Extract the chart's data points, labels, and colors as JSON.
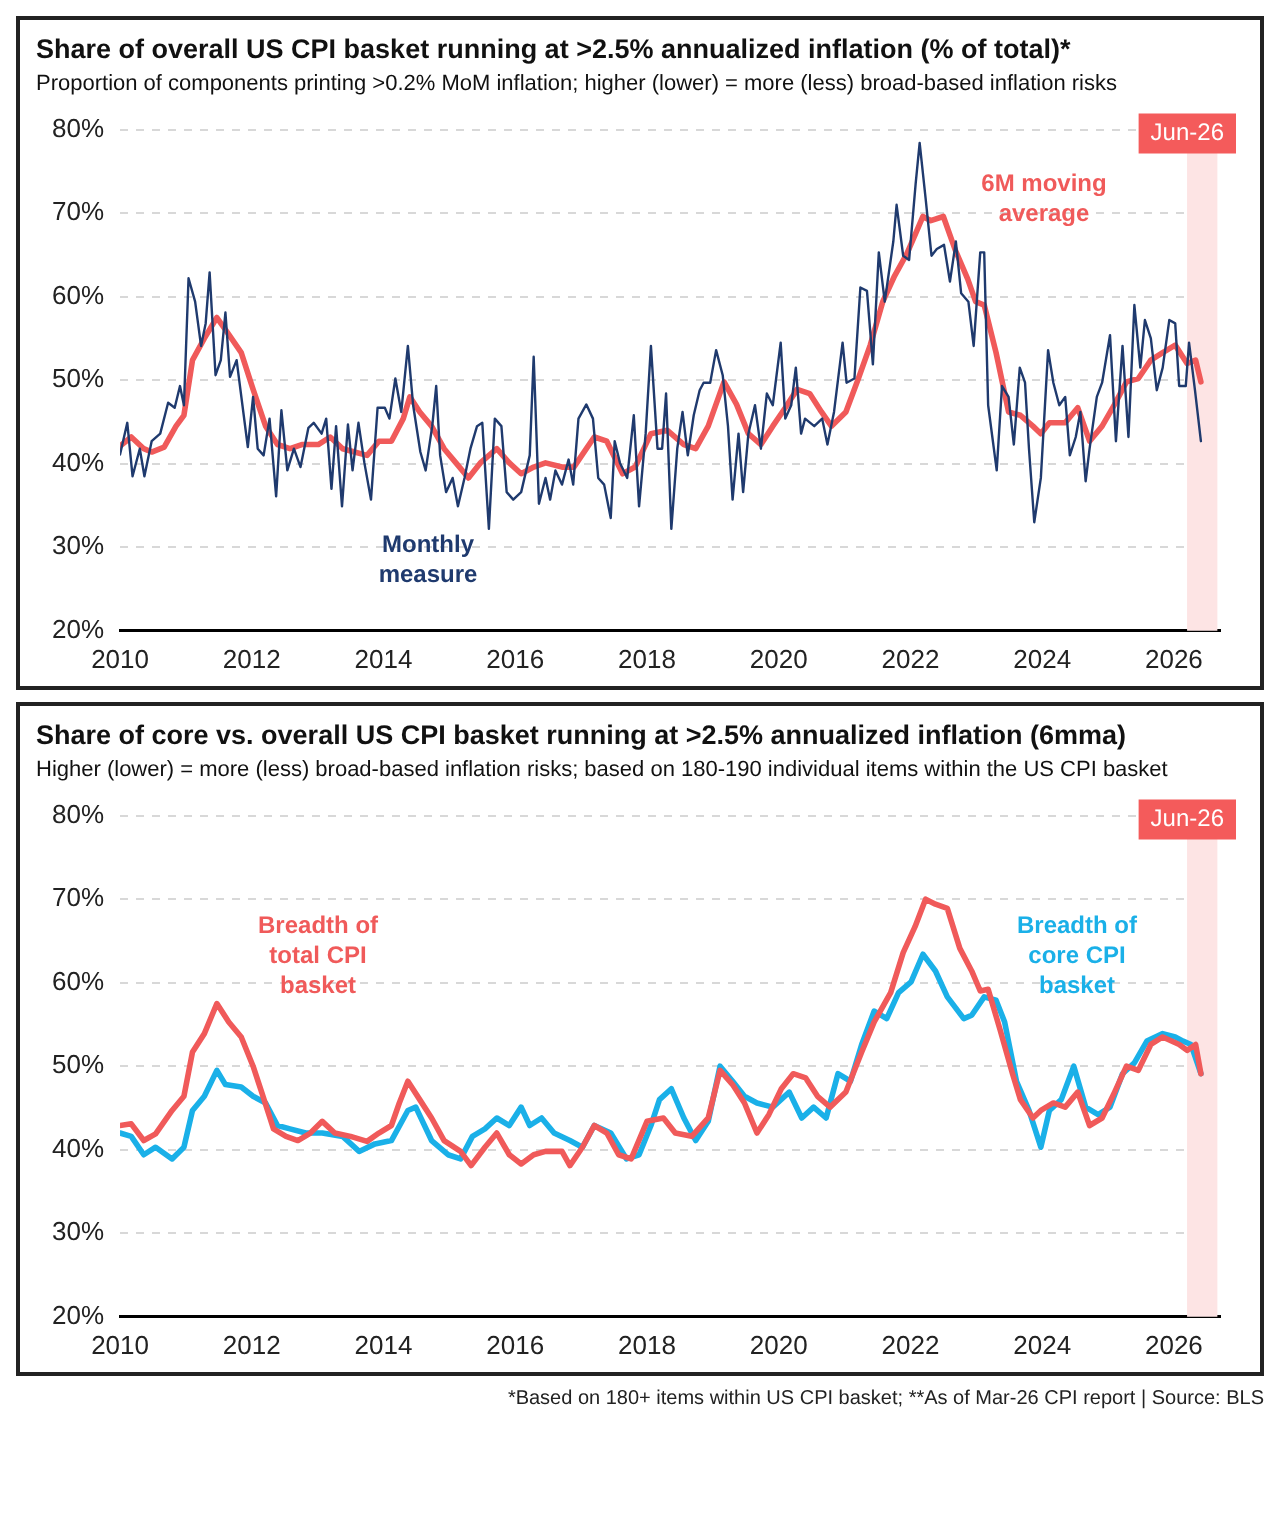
{
  "chart_data": [
    {
      "type": "line",
      "title": "Share of overall US CPI basket running at >2.5% annualized inflation (% of total)*",
      "subtitle": "Proportion of components printing >0.2% MoM inflation; higher (lower) = more (less) broad-based inflation risks",
      "xlim": [
        2010,
        2026.7
      ],
      "xticks": [
        2010,
        2012,
        2014,
        2016,
        2018,
        2020,
        2022,
        2024,
        2026
      ],
      "ylim": [
        20,
        80
      ],
      "yticks": [
        {
          "value": 20,
          "label": "20%"
        },
        {
          "value": 30,
          "label": "30%"
        },
        {
          "value": 40,
          "label": "40%"
        },
        {
          "value": 50,
          "label": "50%"
        },
        {
          "value": 60,
          "label": "60%"
        },
        {
          "value": 70,
          "label": "70%"
        },
        {
          "value": 80,
          "label": "80%"
        }
      ],
      "grid": "y",
      "legend": false,
      "bands": [
        {
          "axis": "x",
          "from": 2026.2,
          "to": 2026.66,
          "label": "Jun-26",
          "color": "#fde4e4"
        }
      ],
      "series": [
        {
          "name": "Monthly measure",
          "color": "#1f3a6e",
          "x": [
            2010.0,
            2010.11,
            2010.19,
            2010.3,
            2010.37,
            2010.48,
            2010.61,
            2010.73,
            2010.83,
            2010.91,
            2010.97,
            2011.04,
            2011.14,
            2011.23,
            2011.3,
            2011.36,
            2011.45,
            2011.53,
            2011.6,
            2011.67,
            2011.77,
            2011.94,
            2012.02,
            2012.09,
            2012.18,
            2012.27,
            2012.37,
            2012.45,
            2012.54,
            2012.64,
            2012.74,
            2012.86,
            2012.94,
            2013.06,
            2013.13,
            2013.21,
            2013.28,
            2013.37,
            2013.46,
            2013.53,
            2013.62,
            2013.71,
            2013.81,
            2013.91,
            2014.02,
            2014.09,
            2014.18,
            2014.27,
            2014.37,
            2014.45,
            2014.56,
            2014.64,
            2014.74,
            2014.8,
            2014.86,
            2014.95,
            2015.05,
            2015.13,
            2015.23,
            2015.32,
            2015.42,
            2015.5,
            2015.6,
            2015.69,
            2015.79,
            2015.87,
            2015.97,
            2016.09,
            2016.22,
            2016.28,
            2016.36,
            2016.46,
            2016.53,
            2016.61,
            2016.71,
            2016.81,
            2016.88,
            2016.96,
            2017.08,
            2017.18,
            2017.26,
            2017.35,
            2017.45,
            2017.51,
            2017.59,
            2017.7,
            2017.8,
            2017.88,
            2017.98,
            2018.06,
            2018.16,
            2018.23,
            2018.29,
            2018.37,
            2018.46,
            2018.54,
            2018.62,
            2018.71,
            2018.8,
            2018.86,
            2018.96,
            2019.05,
            2019.15,
            2019.23,
            2019.3,
            2019.39,
            2019.46,
            2019.54,
            2019.64,
            2019.73,
            2019.82,
            2019.91,
            2020.03,
            2020.1,
            2020.19,
            2020.26,
            2020.34,
            2020.4,
            2020.54,
            2020.66,
            2020.74,
            2020.84,
            2020.97,
            2021.03,
            2021.15,
            2021.24,
            2021.34,
            2021.43,
            2021.52,
            2021.61,
            2021.74,
            2021.79,
            2021.89,
            2021.98,
            2022.08,
            2022.14,
            2022.23,
            2022.32,
            2022.4,
            2022.51,
            2022.6,
            2022.69,
            2022.77,
            2022.88,
            2022.96,
            2023.06,
            2023.12,
            2023.18,
            2023.31,
            2023.39,
            2023.49,
            2023.57,
            2023.66,
            2023.74,
            2023.8,
            2023.88,
            2023.98,
            2024.09,
            2024.17,
            2024.26,
            2024.35,
            2024.42,
            2024.51,
            2024.58,
            2024.66,
            2024.72,
            2024.83,
            2024.91,
            2025.03,
            2025.12,
            2025.22,
            2025.31,
            2025.4,
            2025.49,
            2025.56,
            2025.65,
            2025.74,
            2025.83,
            2025.93,
            2026.02,
            2026.08,
            2026.18,
            2026.23,
            2026.32,
            2026.41
          ],
          "values": [
            41.1,
            44.9,
            38.5,
            41.8,
            38.5,
            42.7,
            43.6,
            47.3,
            46.7,
            49.3,
            47,
            62.2,
            59.4,
            54.1,
            56.8,
            62.9,
            50.6,
            52.4,
            58.1,
            50.4,
            52.4,
            42,
            48,
            41.8,
            41,
            45.4,
            36.1,
            46.4,
            39.2,
            41.8,
            39.6,
            44.3,
            44.9,
            43.6,
            45.4,
            37,
            44.5,
            34.9,
            44.7,
            39.2,
            44.9,
            40.1,
            35.7,
            46.7,
            46.7,
            45.4,
            50.2,
            46.2,
            54.1,
            47,
            41.4,
            39.2,
            44.5,
            49.3,
            41,
            36.6,
            38.3,
            34.9,
            38.3,
            41.8,
            44.5,
            44.9,
            32.2,
            45.4,
            44.5,
            36.6,
            35.7,
            36.6,
            41,
            52.8,
            35.2,
            38.3,
            35.7,
            39.2,
            37.5,
            40.5,
            37.5,
            45.4,
            47.1,
            45.4,
            38.3,
            37.5,
            33.5,
            42.7,
            40.1,
            38.3,
            45.8,
            34.9,
            43.6,
            54.1,
            41.8,
            41.8,
            48.4,
            32.2,
            41.8,
            46.2,
            41,
            45.8,
            48.8,
            49.7,
            49.7,
            53.6,
            50.6,
            44.5,
            35.7,
            43.6,
            36.6,
            43.6,
            47,
            41.8,
            48.4,
            47,
            54.5,
            45.4,
            47,
            51.5,
            43.6,
            45.4,
            44.5,
            45.4,
            42.3,
            46.2,
            54.5,
            49.7,
            50.2,
            61.1,
            60.7,
            51.9,
            65.3,
            59.4,
            66.6,
            71,
            64.9,
            64.4,
            73.6,
            78.4,
            71.8,
            64.9,
            65.7,
            66.2,
            61.8,
            66.6,
            60.4,
            59.4,
            54.1,
            65.3,
            65.3,
            47,
            39.2,
            49.3,
            48,
            42.3,
            51.5,
            49.7,
            41.8,
            33,
            38.3,
            53.6,
            49.7,
            47,
            48,
            41,
            43.2,
            46.2,
            37.9,
            41.8,
            48,
            49.7,
            55.4,
            42.7,
            54.1,
            43.2,
            59,
            51.5,
            57.2,
            55,
            48.8,
            51.5,
            57.2,
            56.8,
            49.3,
            49.3,
            54.5,
            48.8,
            42.7
          ]
        },
        {
          "name": "6M moving average",
          "color": "#f05a5a",
          "x": [
            2010.0,
            2010.17,
            2010.36,
            2010.48,
            2010.67,
            2010.85,
            2010.97,
            2011.1,
            2011.28,
            2011.47,
            2011.65,
            2011.84,
            2012.02,
            2012.21,
            2012.39,
            2012.58,
            2012.76,
            2013.01,
            2013.19,
            2013.38,
            2013.56,
            2013.75,
            2013.93,
            2014.12,
            2014.3,
            2014.4,
            2014.55,
            2014.73,
            2014.92,
            2015.1,
            2015.29,
            2015.47,
            2015.72,
            2015.91,
            2016.09,
            2016.28,
            2016.46,
            2016.71,
            2016.89,
            2017.08,
            2017.2,
            2017.39,
            2017.63,
            2017.82,
            2018.06,
            2018.31,
            2018.56,
            2018.74,
            2018.93,
            2019.17,
            2019.36,
            2019.54,
            2019.73,
            2019.91,
            2020.1,
            2020.28,
            2020.47,
            2020.65,
            2020.8,
            2021.02,
            2021.21,
            2021.39,
            2021.58,
            2021.76,
            2021.95,
            2022.07,
            2022.19,
            2022.31,
            2022.5,
            2022.68,
            2022.87,
            2022.99,
            2023.12,
            2023.3,
            2023.49,
            2023.67,
            2023.86,
            2023.98,
            2024.11,
            2024.35,
            2024.54,
            2024.72,
            2024.91,
            2025.1,
            2025.28,
            2025.46,
            2025.65,
            2025.83,
            2026.02,
            2026.2,
            2026.33,
            2026.41
          ],
          "values": [
            42.1,
            43.2,
            41.8,
            41.4,
            42,
            44.5,
            45.8,
            52.4,
            55,
            57.5,
            55.5,
            53.3,
            48.9,
            44.5,
            42.3,
            41.8,
            42.3,
            42.3,
            43.2,
            41.8,
            41.4,
            41,
            42.7,
            42.7,
            45.4,
            48,
            46.2,
            44.5,
            41.8,
            40.1,
            38.3,
            40.1,
            41.8,
            40.1,
            38.8,
            39.6,
            40.1,
            39.6,
            39.6,
            41.8,
            43.2,
            42.7,
            38.8,
            39.6,
            43.6,
            44,
            42.3,
            41.8,
            44.5,
            49.8,
            47.1,
            43.6,
            42.3,
            44.5,
            46.7,
            48.9,
            48.4,
            46.2,
            44.5,
            46.2,
            50.2,
            54.2,
            59.4,
            62.5,
            65.2,
            67.4,
            69.6,
            69.1,
            69.6,
            65.6,
            62.1,
            59.4,
            59,
            53.3,
            46.2,
            45.8,
            44.5,
            43.6,
            44.9,
            44.9,
            46.7,
            42.7,
            44.5,
            47.1,
            49.8,
            50.2,
            52.4,
            53.3,
            54.2,
            52,
            52.4,
            49.8
          ]
        }
      ]
    },
    {
      "type": "line",
      "title": "Share of core vs. overall US CPI basket running at >2.5% annualized inflation (6mma)",
      "subtitle": "Higher (lower) = more (less) broad-based inflation risks; based on 180-190 individual items within the US CPI basket",
      "annotations": [
        "*Based on 180+ items within US CPI basket; **As of Mar-26 CPI report | Source: BLS"
      ],
      "xlim": [
        2010,
        2026.7
      ],
      "xticks": [
        2010,
        2012,
        2014,
        2016,
        2018,
        2020,
        2022,
        2024,
        2026
      ],
      "ylim": [
        20,
        80
      ],
      "yticks": [
        {
          "value": 20,
          "label": "20%"
        },
        {
          "value": 30,
          "label": "30%"
        },
        {
          "value": 40,
          "label": "40%"
        },
        {
          "value": 50,
          "label": "50%"
        },
        {
          "value": 60,
          "label": "60%"
        },
        {
          "value": 70,
          "label": "70%"
        },
        {
          "value": 80,
          "label": "80%"
        }
      ],
      "grid": "y",
      "legend": false,
      "bands": [
        {
          "axis": "x",
          "from": 2026.2,
          "to": 2026.66,
          "label": "Jun-26",
          "color": "#fde4e4"
        }
      ],
      "series": [
        {
          "name": "Breadth of total CPI basket",
          "color": "#f05a5a",
          "x": [
            2010.0,
            2010.17,
            2010.36,
            2010.54,
            2010.79,
            2010.97,
            2011.1,
            2011.28,
            2011.47,
            2011.65,
            2011.84,
            2012.02,
            2012.15,
            2012.33,
            2012.52,
            2012.7,
            2012.89,
            2013.07,
            2013.26,
            2013.5,
            2013.75,
            2013.93,
            2014.12,
            2014.24,
            2014.37,
            2014.55,
            2014.73,
            2014.92,
            2015.17,
            2015.33,
            2015.54,
            2015.72,
            2015.91,
            2016.09,
            2016.28,
            2016.46,
            2016.71,
            2016.83,
            2017.02,
            2017.2,
            2017.39,
            2017.57,
            2017.76,
            2018.0,
            2018.25,
            2018.43,
            2018.68,
            2018.93,
            2019.11,
            2019.3,
            2019.48,
            2019.67,
            2019.85,
            2020.04,
            2020.22,
            2020.41,
            2020.59,
            2020.78,
            2021.02,
            2021.26,
            2021.45,
            2021.7,
            2021.89,
            2022.07,
            2022.23,
            2022.38,
            2022.56,
            2022.75,
            2022.93,
            2023.06,
            2023.18,
            2023.36,
            2023.55,
            2023.67,
            2023.86,
            2023.98,
            2024.17,
            2024.35,
            2024.54,
            2024.72,
            2024.91,
            2025.1,
            2025.28,
            2025.46,
            2025.65,
            2025.83,
            2026.08,
            2026.2,
            2026.33,
            2026.41
          ],
          "values": [
            42.9,
            43.1,
            41.1,
            41.9,
            44.7,
            46.4,
            51.7,
            53.9,
            57.5,
            55.3,
            53.5,
            50,
            46.9,
            42.5,
            41.6,
            41.1,
            42,
            43.4,
            42,
            41.6,
            41,
            42,
            42.9,
            45.6,
            48.2,
            46,
            43.8,
            41.1,
            39.8,
            38.1,
            40.3,
            42,
            39.4,
            38.3,
            39.4,
            39.8,
            39.8,
            38.1,
            40.3,
            42.9,
            42,
            39.4,
            38.9,
            43.4,
            43.8,
            42,
            41.6,
            43.8,
            49.5,
            47.8,
            45.6,
            42,
            44.2,
            47.3,
            49.1,
            48.6,
            46.4,
            45.1,
            46.9,
            51.7,
            55.3,
            58.8,
            63.6,
            66.7,
            70,
            69.4,
            68.9,
            64.1,
            61.4,
            59,
            59.2,
            54.4,
            49.1,
            46,
            43.8,
            44.7,
            45.6,
            45.1,
            46.9,
            42.9,
            43.8,
            46.9,
            50,
            49.5,
            52.6,
            53.5,
            52.6,
            51.9,
            52.6,
            49.1
          ]
        },
        {
          "name": "Breadth of core CPI basket",
          "color": "#1ab0e8",
          "x": [
            2010.0,
            2010.17,
            2010.36,
            2010.54,
            2010.79,
            2010.97,
            2011.1,
            2011.28,
            2011.47,
            2011.6,
            2011.84,
            2012.02,
            2012.21,
            2012.39,
            2012.58,
            2012.82,
            2013.07,
            2013.38,
            2013.63,
            2013.87,
            2014.12,
            2014.37,
            2014.49,
            2014.73,
            2014.98,
            2015.17,
            2015.35,
            2015.54,
            2015.72,
            2015.91,
            2016.09,
            2016.22,
            2016.4,
            2016.59,
            2016.83,
            2017.02,
            2017.2,
            2017.45,
            2017.69,
            2017.88,
            2018.06,
            2018.19,
            2018.37,
            2018.56,
            2018.74,
            2018.93,
            2019.11,
            2019.3,
            2019.48,
            2019.67,
            2019.91,
            2020.16,
            2020.35,
            2020.53,
            2020.72,
            2020.9,
            2021.09,
            2021.26,
            2021.45,
            2021.64,
            2021.82,
            2022.01,
            2022.19,
            2022.38,
            2022.56,
            2022.81,
            2022.93,
            2023.12,
            2023.3,
            2023.43,
            2023.61,
            2023.8,
            2023.98,
            2024.11,
            2024.29,
            2024.48,
            2024.66,
            2024.85,
            2025.03,
            2025.22,
            2025.4,
            2025.59,
            2025.83,
            2026.02,
            2026.14,
            2026.26,
            2026.41
          ],
          "values": [
            42,
            41.6,
            39.4,
            40.3,
            38.9,
            40.3,
            44.7,
            46.4,
            49.5,
            47.8,
            47.5,
            46.4,
            45.6,
            42.9,
            42.5,
            42,
            42,
            41.6,
            39.8,
            40.7,
            41.1,
            44.7,
            45.1,
            41.1,
            39.4,
            38.9,
            41.6,
            42.5,
            43.8,
            42.9,
            45.1,
            42.9,
            43.8,
            42,
            41.1,
            40.3,
            42.9,
            42,
            38.9,
            39.4,
            42.9,
            46,
            47.3,
            43.8,
            41.1,
            43.4,
            50,
            48.2,
            46.4,
            45.6,
            45.1,
            46.9,
            43.8,
            45.1,
            43.8,
            49.1,
            48.2,
            52.6,
            56.6,
            55.7,
            58.8,
            60.1,
            63.4,
            61.4,
            58.3,
            55.7,
            56.1,
            58.3,
            57.9,
            55.3,
            48.2,
            44.7,
            40.3,
            44.7,
            46,
            50,
            45.1,
            44.2,
            45.1,
            49.1,
            50.4,
            53,
            53.9,
            53.5,
            53,
            52.6,
            49.1
          ]
        }
      ]
    }
  ]
}
